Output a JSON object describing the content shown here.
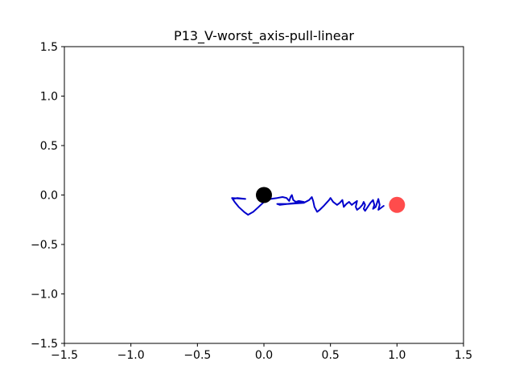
{
  "chart_data": {
    "type": "line",
    "title": "P13_V-worst_axis-pull-linear",
    "xlabel": "",
    "ylabel": "",
    "xlim": [
      -1.5,
      1.5
    ],
    "ylim": [
      -1.5,
      1.5
    ],
    "grid": false,
    "xticks": [
      -1.5,
      -1.0,
      -0.5,
      0.0,
      0.5,
      1.0,
      1.5
    ],
    "yticks": [
      -1.5,
      -1.0,
      -0.5,
      0.0,
      0.5,
      1.0,
      1.5
    ],
    "xtick_labels": [
      "−1.5",
      "−1.0",
      "−0.5",
      "0.0",
      "0.5",
      "1.0",
      "1.5"
    ],
    "ytick_labels": [
      "−1.5",
      "−1.0",
      "−0.5",
      "0.0",
      "0.5",
      "1.0",
      "1.5"
    ],
    "series": [
      {
        "color": "#0000cc",
        "x": [
          -0.23,
          -0.2,
          -0.14,
          -0.24,
          -0.22,
          -0.19,
          -0.15,
          -0.12,
          -0.08,
          -0.04,
          0.0,
          0.05,
          0.1,
          0.14,
          0.17,
          0.19,
          0.2,
          0.21,
          0.22,
          0.24,
          0.26,
          0.3,
          0.12,
          0.1,
          0.18,
          0.3,
          0.34,
          0.36,
          0.37,
          0.38,
          0.4,
          0.42,
          0.45,
          0.47,
          0.49,
          0.5,
          0.52,
          0.55,
          0.57,
          0.59,
          0.6,
          0.62,
          0.64,
          0.66,
          0.68,
          0.7,
          0.69,
          0.7,
          0.72,
          0.74,
          0.75,
          0.76,
          0.75,
          0.76,
          0.78,
          0.8,
          0.82,
          0.83,
          0.82,
          0.84,
          0.85,
          0.86,
          0.87,
          0.86,
          0.88,
          0.9
        ],
        "y": [
          -0.04,
          -0.03,
          -0.04,
          -0.03,
          -0.07,
          -0.12,
          -0.17,
          -0.2,
          -0.17,
          -0.12,
          -0.07,
          -0.04,
          -0.03,
          -0.02,
          -0.03,
          -0.06,
          -0.02,
          0.0,
          -0.05,
          -0.07,
          -0.06,
          -0.07,
          -0.1,
          -0.09,
          -0.09,
          -0.08,
          -0.05,
          -0.02,
          -0.06,
          -0.12,
          -0.17,
          -0.15,
          -0.11,
          -0.08,
          -0.05,
          -0.03,
          -0.07,
          -0.1,
          -0.08,
          -0.05,
          -0.12,
          -0.09,
          -0.07,
          -0.1,
          -0.08,
          -0.06,
          -0.12,
          -0.15,
          -0.13,
          -0.1,
          -0.07,
          -0.1,
          -0.14,
          -0.16,
          -0.12,
          -0.08,
          -0.05,
          -0.1,
          -0.14,
          -0.12,
          -0.08,
          -0.04,
          -0.1,
          -0.15,
          -0.13,
          -0.11
        ]
      }
    ],
    "markers": [
      {
        "x": 0.0,
        "y": 0.0,
        "color": "#000000",
        "alpha": 1.0
      },
      {
        "x": 1.0,
        "y": -0.1,
        "color": "#ff0000",
        "alpha": 0.7
      }
    ]
  }
}
